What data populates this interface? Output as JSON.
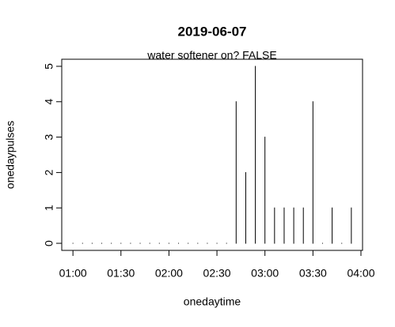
{
  "chart_data": {
    "type": "stem",
    "title": "2019-06-07",
    "subtitle": "water softener on? FALSE",
    "x_label": "onedaytime",
    "y_label": "onedaypulses",
    "x": [
      "01:00",
      "01:06",
      "01:12",
      "01:18",
      "01:24",
      "01:30",
      "01:36",
      "01:42",
      "01:48",
      "01:54",
      "02:00",
      "02:06",
      "02:12",
      "02:18",
      "02:24",
      "02:30",
      "02:36",
      "02:42",
      "02:48",
      "02:54",
      "03:00",
      "03:06",
      "03:12",
      "03:18",
      "03:24",
      "03:30",
      "03:36",
      "03:42",
      "03:48",
      "03:54"
    ],
    "values": [
      0,
      0,
      0,
      0,
      0,
      0,
      0,
      0,
      0,
      0,
      0,
      0,
      0,
      0,
      0,
      0,
      0,
      4,
      2,
      5,
      3,
      1,
      1,
      1,
      1,
      4,
      0,
      1,
      0,
      1
    ],
    "color": "#000000",
    "xlim": [
      "00:53",
      "04:01"
    ],
    "xticks": [
      "01:00",
      "01:30",
      "02:00",
      "02:30",
      "03:00",
      "03:30",
      "04:00"
    ],
    "ylim": [
      -0.2,
      5.2
    ],
    "yticks": [
      0,
      1,
      2,
      3,
      4,
      5
    ]
  }
}
